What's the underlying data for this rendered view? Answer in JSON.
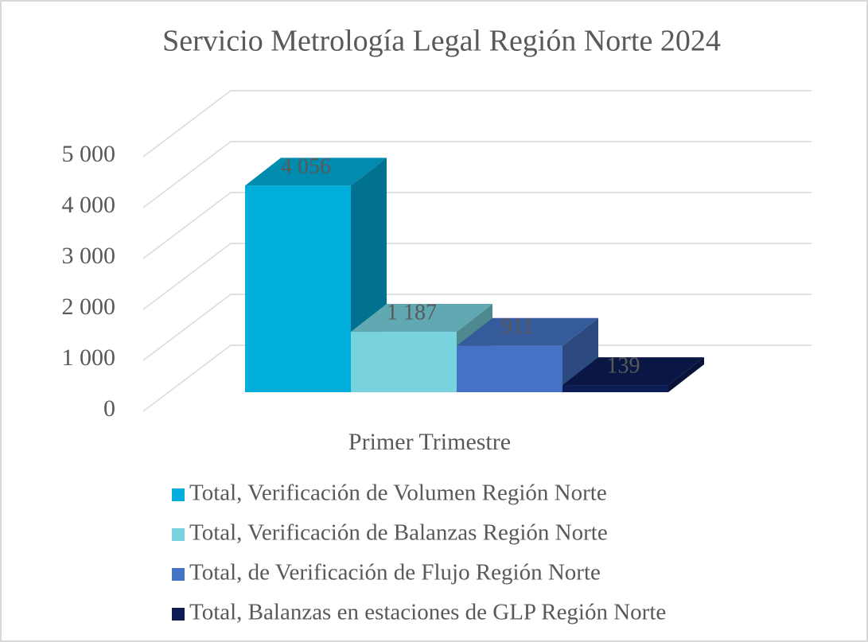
{
  "chart_data": {
    "type": "bar3d",
    "title": "Servicio Metrología Legal Región Norte 2024",
    "categories": [
      "Primer Trimestre"
    ],
    "series": [
      {
        "name": "Total, Verificación de Volumen Región Norte",
        "color": "#00aedb",
        "values": [
          4056
        ],
        "value_labels": [
          "4 056"
        ]
      },
      {
        "name": "Total, Verificación de Balanzas Región Norte",
        "color": "#78d3de",
        "values": [
          1187
        ],
        "value_labels": [
          "1 187"
        ]
      },
      {
        "name": "Total, de Verificación de Flujo Región Norte",
        "color": "#4472c4",
        "values": [
          911
        ],
        "value_labels": [
          "911"
        ]
      },
      {
        "name": "Total, Balanzas en estaciones de GLP Región Norte",
        "color": "#0c1d55",
        "values": [
          139
        ],
        "value_labels": [
          "139"
        ]
      }
    ],
    "ylim": [
      0,
      5000
    ],
    "yticks": [
      0,
      {
        "value": 1000,
        "label": "1 000"
      },
      {
        "value": 2000,
        "label": "2 000"
      },
      {
        "value": 3000,
        "label": "3 000"
      },
      {
        "value": 4000,
        "label": "4 000"
      },
      {
        "value": 5000,
        "label": "5 000"
      }
    ],
    "grid": true,
    "legend": "bottom"
  }
}
